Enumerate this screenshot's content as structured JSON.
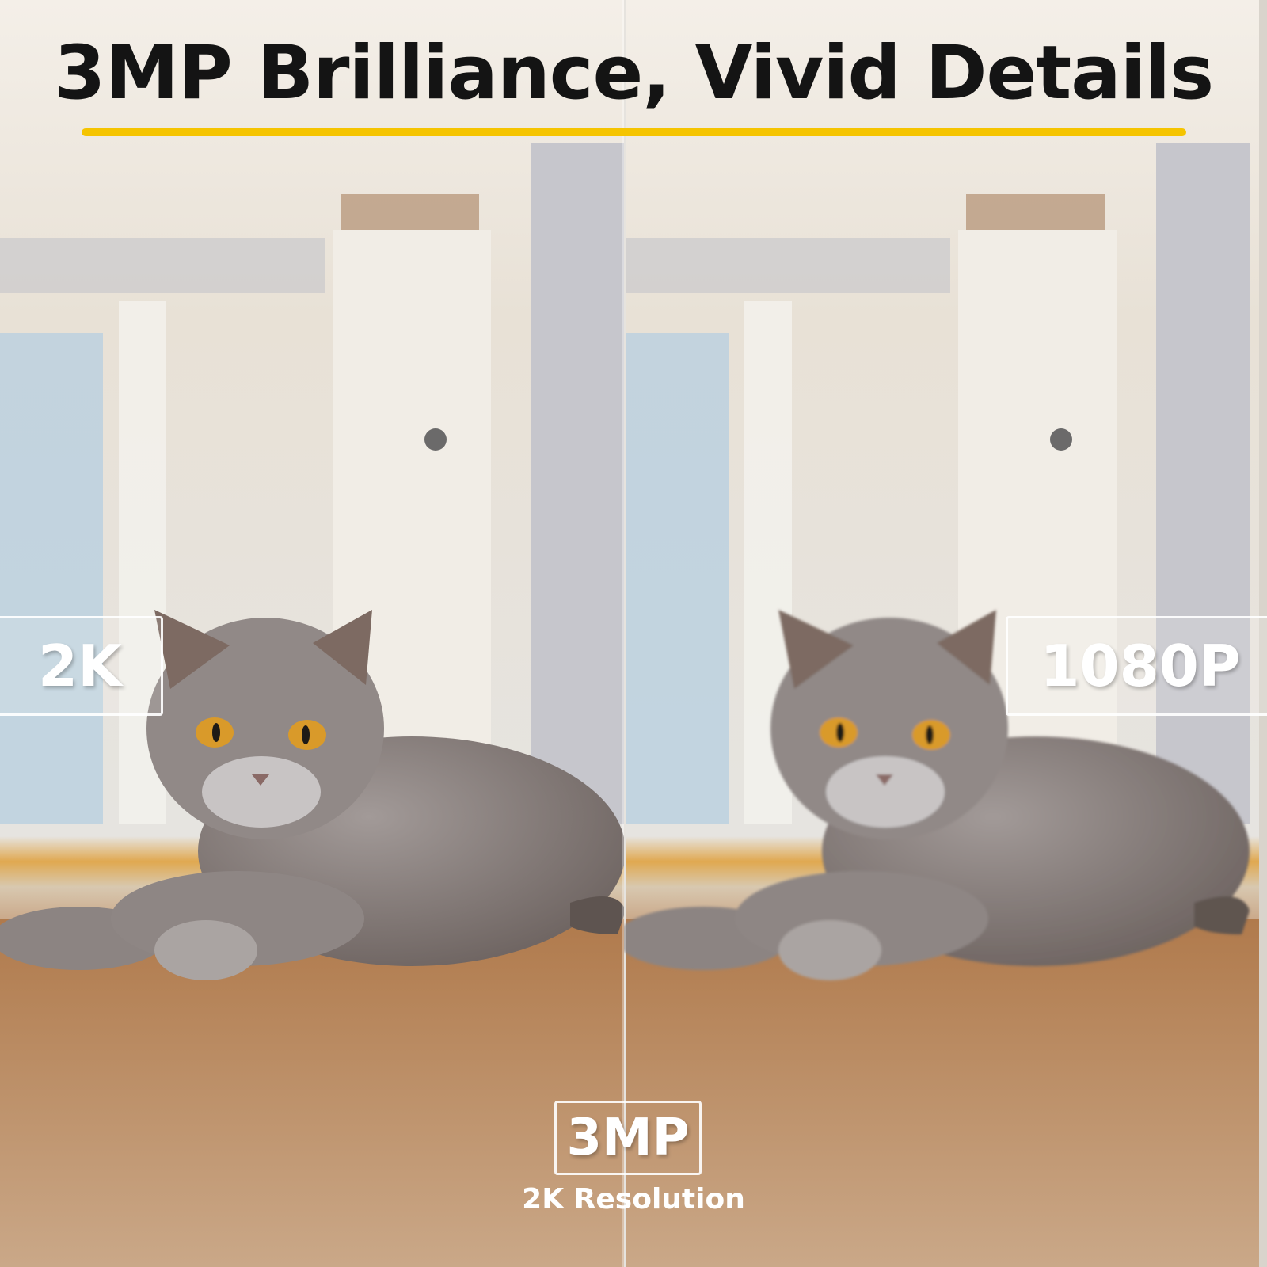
{
  "headline": "3MP Brilliance, Vivid Details",
  "accent_color": "#f5c400",
  "left_label": "2K",
  "right_label": "1080P",
  "center_badge": "3MP",
  "center_caption": "2K Resolution",
  "images": {
    "left": "gray British shorthair cat lying on wooden floor, sharp",
    "right": "same cat, pixelated lower resolution"
  }
}
